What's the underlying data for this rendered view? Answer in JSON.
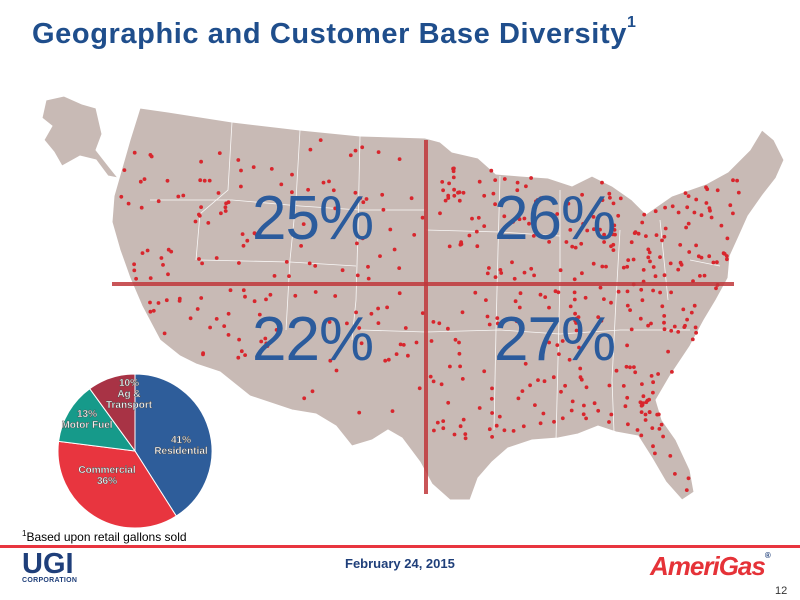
{
  "slide": {
    "title": "Geographic and Customer Base Diversity",
    "title_sup": "1",
    "footnote_sup": "1",
    "footnote": "Based upon retail gallons sold",
    "date": "February 24, 2015",
    "page_number": "12"
  },
  "logos": {
    "left_main": "UGI",
    "left_sub": "CORPORATION",
    "right_main": "AmeriGas",
    "right_tm": "®"
  },
  "quadrants": {
    "northwest": "25%",
    "northeast": "26%",
    "southwest": "22%",
    "southeast": "27%"
  },
  "chart_data": {
    "type": "pie",
    "title": "",
    "slices": [
      {
        "label": "Residential",
        "percent_label": "41%",
        "value": 41,
        "color": "#2e5d9a"
      },
      {
        "label": "Commercial",
        "percent_label": "36%",
        "value": 36,
        "color": "#e8353f"
      },
      {
        "label": "Motor Fuel",
        "percent_label": "13%",
        "value": 13,
        "color": "#169a8a"
      },
      {
        "label": "Ag & Transport",
        "percent_label": "10%",
        "value": 10,
        "color": "#a83345"
      }
    ]
  },
  "colors": {
    "title": "#1f4e8c",
    "map_fill": "#c8bab5",
    "map_border": "#ffffff",
    "divider": "#c0383c",
    "dots": "#d8262d"
  }
}
